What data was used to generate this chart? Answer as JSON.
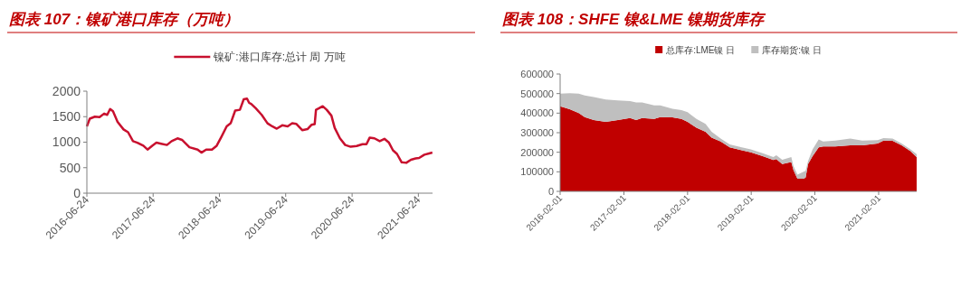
{
  "chart_data": [
    {
      "type": "line",
      "title": "图表 107：镍矿港口库存（万吨）",
      "legend": "top",
      "x": [
        "2016-06-24",
        "2016-07-10",
        "2016-08-07",
        "2016-09-02",
        "2016-09-27",
        "2016-10-14",
        "2016-10-30",
        "2016-11-15",
        "2016-12-10",
        "2017-01-12",
        "2017-02-06",
        "2017-03-05",
        "2017-03-29",
        "2017-05-01",
        "2017-05-24",
        "2017-06-19",
        "2017-07-12",
        "2017-08-07",
        "2017-09-08",
        "2017-10-04",
        "2017-11-05",
        "2017-11-30",
        "2017-12-16",
        "2018-01-10",
        "2018-02-24",
        "2018-03-17",
        "2018-04-12",
        "2018-05-14",
        "2018-06-09",
        "2018-07-05",
        "2018-08-03",
        "2018-08-25",
        "2018-09-19",
        "2018-10-15",
        "2018-11-05",
        "2018-11-23",
        "2018-12-05",
        "2018-12-16",
        "2019-01-10",
        "2019-02-12",
        "2019-03-16",
        "2019-04-11",
        "2019-05-06",
        "2019-06-05",
        "2019-07-05",
        "2019-07-30",
        "2019-08-21",
        "2019-09-23",
        "2019-10-22",
        "2019-11-13",
        "2019-12-01",
        "2019-12-08",
        "2019-12-25",
        "2020-01-14",
        "2020-02-05",
        "2020-03-02",
        "2020-03-20",
        "2020-04-18",
        "2020-05-17",
        "2020-06-16",
        "2020-07-19",
        "2020-08-20",
        "2020-09-11",
        "2020-09-29",
        "2020-10-25",
        "2020-11-23",
        "2020-12-19",
        "2021-01-13",
        "2021-02-04",
        "2021-02-26",
        "2021-03-24",
        "2021-04-18",
        "2021-05-14",
        "2021-06-09",
        "2021-06-28",
        "2021-07-27",
        "2021-08-22",
        "2021-09-09"
      ],
      "series": [
        {
          "name": "镍矿:港口库存:总计 周 万吨",
          "color": "#c8102e",
          "values": [
            1310,
            1460,
            1500,
            1490,
            1560,
            1535,
            1650,
            1605,
            1400,
            1250,
            1195,
            1020,
            990,
            930,
            855,
            930,
            990,
            970,
            945,
            1020,
            1075,
            1045,
            990,
            900,
            855,
            795,
            855,
            855,
            930,
            1105,
            1310,
            1370,
            1620,
            1635,
            1840,
            1855,
            1770,
            1750,
            1665,
            1535,
            1370,
            1310,
            1265,
            1330,
            1310,
            1370,
            1360,
            1235,
            1255,
            1340,
            1355,
            1635,
            1665,
            1705,
            1635,
            1520,
            1280,
            1075,
            945,
            910,
            925,
            960,
            960,
            1090,
            1075,
            1020,
            1065,
            990,
            840,
            770,
            605,
            595,
            655,
            680,
            690,
            755,
            780,
            795
          ]
        }
      ],
      "xlim": [
        "2016-06-24",
        "2021-09-10"
      ],
      "xticks": [
        "2016-06-24",
        "2017-06-24",
        "2018-06-24",
        "2019-06-24",
        "2020-06-24",
        "2021-06-24"
      ],
      "ylim": [
        0,
        2000
      ],
      "yticks": [
        0,
        500,
        1000,
        1500,
        2000
      ]
    },
    {
      "type": "area",
      "stacked": true,
      "title": "图表 108：SHFE 镍&LME 镍期货库存",
      "legend": "top",
      "x": [
        "2016-02-01",
        "2016-03-27",
        "2016-05-18",
        "2016-06-21",
        "2016-08-12",
        "2016-10-20",
        "2016-12-28",
        "2017-03-08",
        "2017-04-12",
        "2017-05-16",
        "2017-07-25",
        "2017-08-28",
        "2017-11-06",
        "2017-12-28",
        "2018-02-01",
        "2018-03-24",
        "2018-05-15",
        "2018-06-19",
        "2018-08-10",
        "2018-10-01",
        "2018-12-09",
        "2019-01-30",
        "2019-04-08",
        "2019-06-08",
        "2019-06-25",
        "2019-07-29",
        "2019-09-19",
        "2019-10-01",
        "2019-10-24",
        "2019-11-28",
        "2019-12-10",
        "2019-12-24",
        "2020-01-19",
        "2020-02-23",
        "2020-03-20",
        "2020-05-28",
        "2020-08-22",
        "2020-10-30",
        "2021-01-26",
        "2021-03-01",
        "2021-04-22",
        "2021-06-13",
        "2021-08-03",
        "2021-09-07"
      ],
      "series": [
        {
          "name": "总库存:LME镍 日",
          "color": "#c00000",
          "values": [
            435000,
            420000,
            400000,
            380000,
            365000,
            355000,
            365000,
            375000,
            365000,
            375000,
            370000,
            380000,
            378000,
            370000,
            355000,
            325000,
            305000,
            275000,
            255000,
            225000,
            210000,
            200000,
            180000,
            160000,
            165000,
            140000,
            150000,
            110000,
            65000,
            65000,
            70000,
            140000,
            180000,
            225000,
            230000,
            230000,
            235000,
            235000,
            245000,
            260000,
            258000,
            235000,
            205000,
            175000
          ]
        },
        {
          "name": "库存期货:镍 日",
          "color": "#bfbfbf",
          "values": [
            65000,
            82000,
            100000,
            110000,
            117000,
            115000,
            100000,
            87000,
            90000,
            80000,
            70000,
            60000,
            44000,
            45000,
            50000,
            45000,
            40000,
            30000,
            15000,
            15000,
            15000,
            15000,
            15000,
            15000,
            20000,
            22000,
            25000,
            20000,
            20000,
            35000,
            35000,
            15000,
            35000,
            40000,
            25000,
            30000,
            35000,
            25000,
            17000,
            12000,
            12000,
            10000,
            10000,
            15000
          ]
        }
      ],
      "xlim": [
        "2016-02-01",
        "2021-09-07"
      ],
      "xticks": [
        "2016-02-01",
        "2017-02-01",
        "2018-02-01",
        "2019-02-01",
        "2020-02-01",
        "2021-02-01"
      ],
      "ylim": [
        0,
        600000
      ],
      "yticks": [
        0,
        100000,
        200000,
        300000,
        400000,
        500000,
        600000
      ]
    }
  ]
}
